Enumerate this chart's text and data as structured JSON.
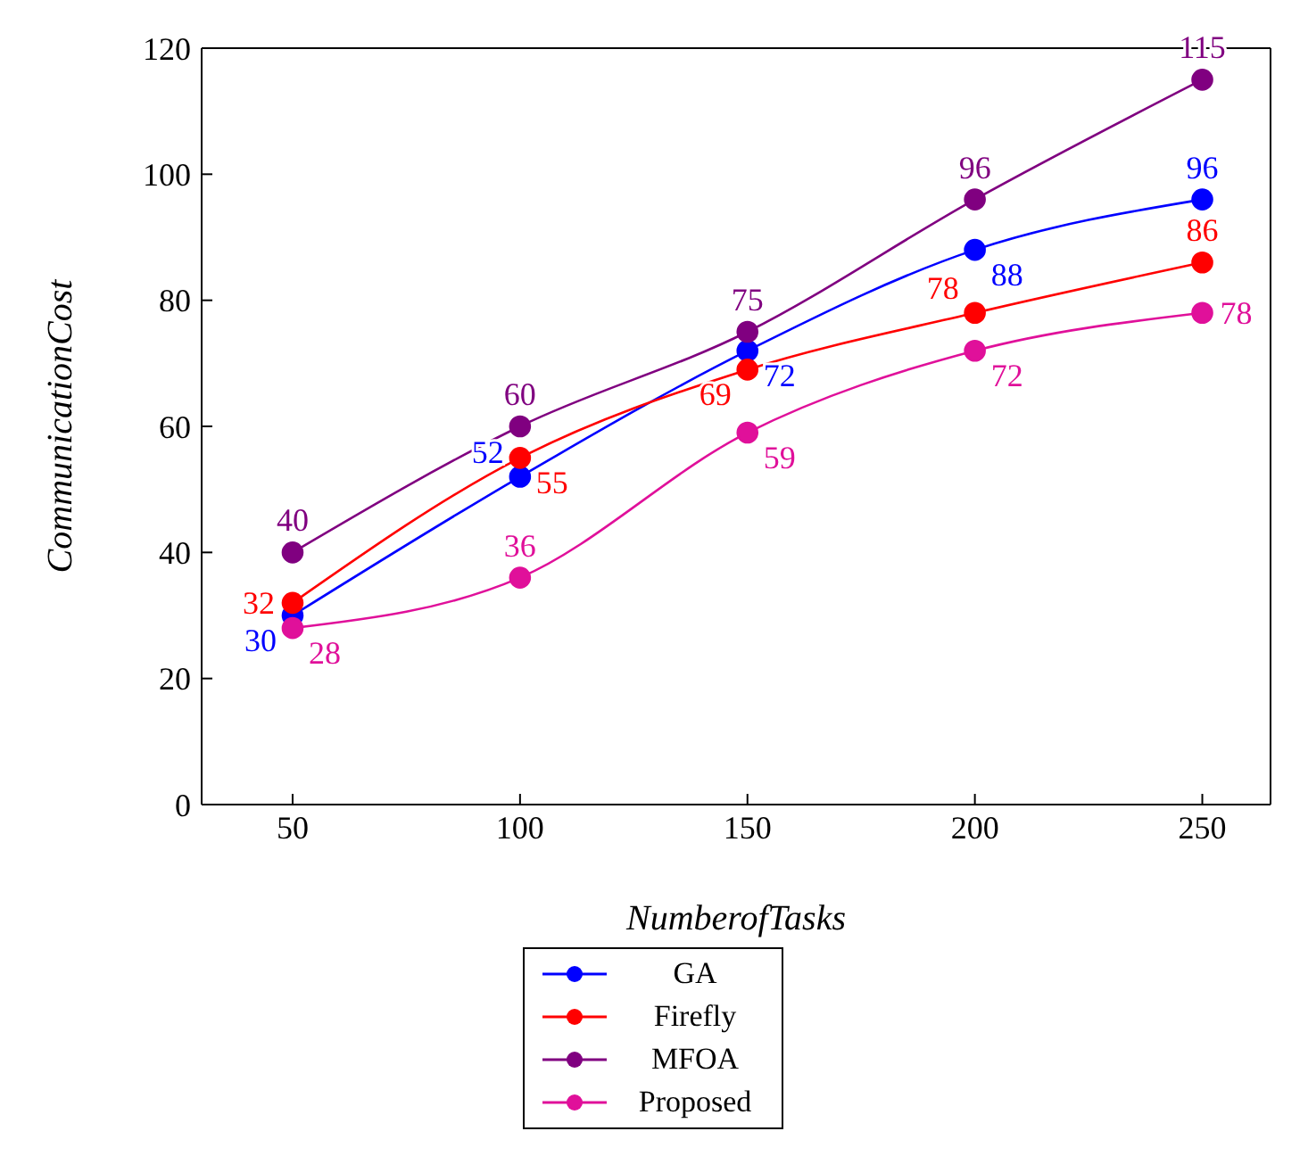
{
  "chart_data": {
    "type": "line",
    "xlabel": "NumberofTasks",
    "ylabel": "CommunicationCost",
    "x": [
      50,
      100,
      150,
      200,
      250
    ],
    "xlim": [
      30,
      265
    ],
    "xticks": [
      50,
      100,
      150,
      200,
      250
    ],
    "ylim": [
      0,
      120
    ],
    "yticks": [
      0,
      20,
      40,
      60,
      80,
      100,
      120
    ],
    "marker": "circle",
    "line_style": "solid",
    "grid": false,
    "legend": "bottom",
    "data_labels": true,
    "series": [
      {
        "name": "GA",
        "color": "#0000ff",
        "values": [
          30,
          52,
          72,
          88,
          96
        ]
      },
      {
        "name": "Firefly",
        "color": "#ff0000",
        "values": [
          32,
          55,
          69,
          78,
          86
        ]
      },
      {
        "name": "MFOA",
        "color": "#800080",
        "values": [
          40,
          60,
          75,
          96,
          115
        ]
      },
      {
        "name": "Proposed",
        "color": "#e0109a",
        "values": [
          28,
          36,
          59,
          72,
          78
        ]
      }
    ]
  }
}
